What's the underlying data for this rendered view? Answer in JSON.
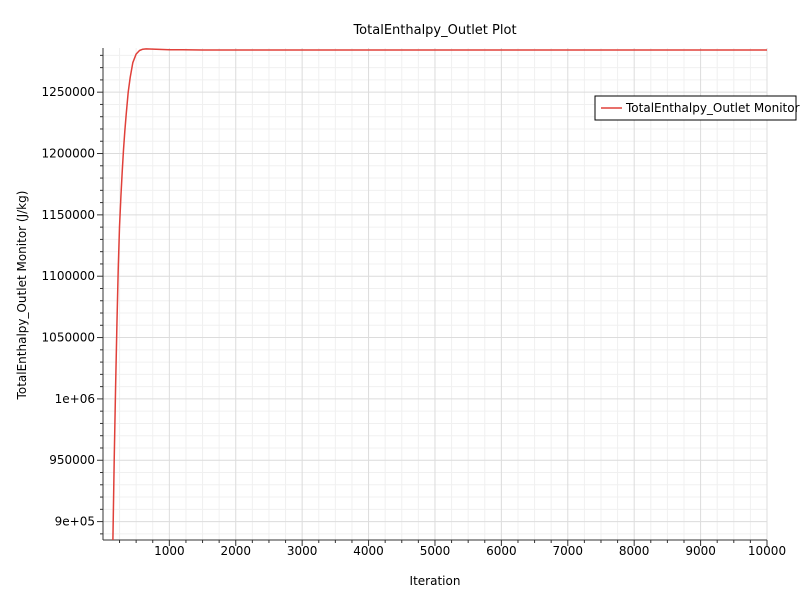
{
  "chart_data": {
    "type": "line",
    "title": "TotalEnthalpy_Outlet Plot",
    "xlabel": "Iteration",
    "ylabel": "TotalEnthalpy_Outlet Monitor (J/kg)",
    "xlim": [
      1,
      10000
    ],
    "ylim": [
      885000,
      1286000
    ],
    "x_ticks": [
      1000,
      2000,
      3000,
      4000,
      5000,
      6000,
      7000,
      8000,
      9000,
      10000
    ],
    "x_tick_labels": [
      "1000",
      "2000",
      "3000",
      "4000",
      "5000",
      "6000",
      "7000",
      "8000",
      "9000",
      "10000"
    ],
    "y_ticks": [
      900000,
      950000,
      1000000,
      1050000,
      1100000,
      1150000,
      1200000,
      1250000
    ],
    "y_tick_labels": [
      "9e+05",
      "950000",
      "1e+06",
      "1050000",
      "1100000",
      "1150000",
      "1200000",
      "1250000"
    ],
    "grid": true,
    "legend_position": "top-right",
    "series": [
      {
        "name": "TotalEnthalpy_Outlet Monitor",
        "color": "#e0403a",
        "x": [
          150,
          170,
          190,
          210,
          230,
          250,
          270,
          290,
          310,
          330,
          350,
          380,
          410,
          450,
          500,
          550,
          600,
          650,
          700,
          800,
          900,
          1000,
          1200,
          1500,
          2000,
          3000,
          5000,
          7000,
          10000
        ],
        "y": [
          885000,
          950000,
          1010000,
          1060000,
          1105000,
          1140000,
          1165000,
          1185000,
          1203000,
          1218000,
          1232000,
          1250000,
          1262000,
          1274000,
          1281000,
          1284000,
          1285000,
          1285300,
          1285200,
          1285000,
          1284800,
          1284600,
          1284500,
          1284400,
          1284400,
          1284400,
          1284400,
          1284400,
          1284400
        ]
      }
    ]
  }
}
